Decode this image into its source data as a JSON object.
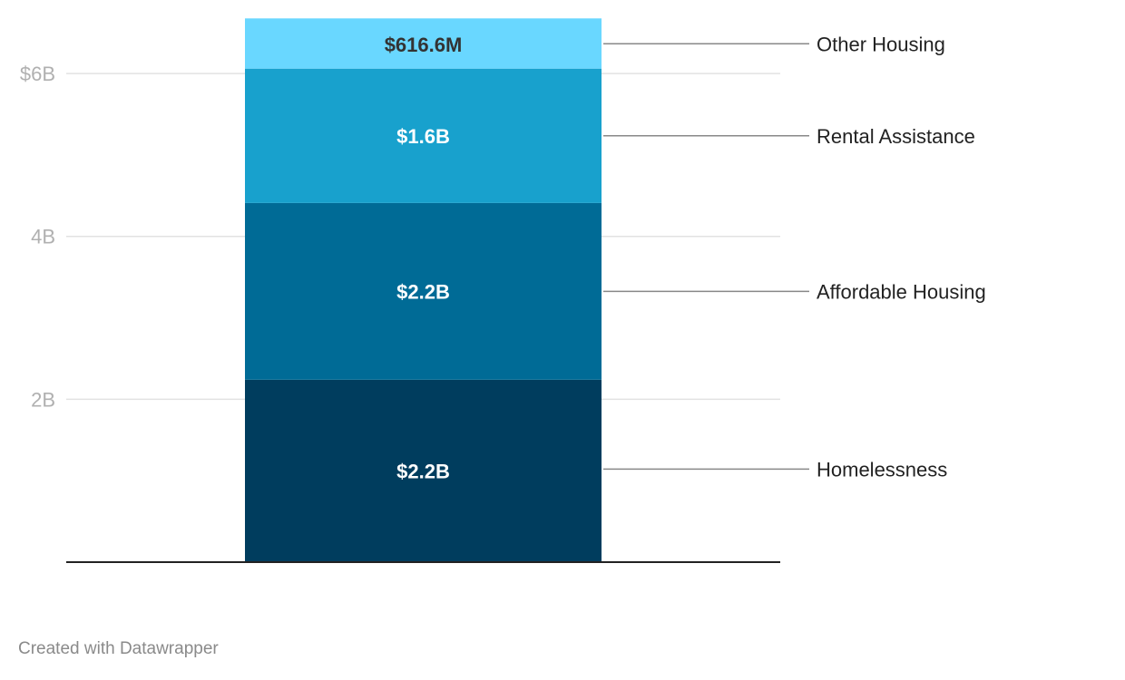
{
  "chart_data": {
    "type": "bar",
    "stacked": true,
    "categories": [
      ""
    ],
    "series": [
      {
        "name": "Homelessness",
        "values": [
          2.24
        ],
        "label": "$2.2B",
        "color": "#003d5e"
      },
      {
        "name": "Affordable Housing",
        "values": [
          2.17
        ],
        "label": "$2.2B",
        "color": "#006b96"
      },
      {
        "name": "Rental Assistance",
        "values": [
          1.65
        ],
        "label": "$1.6B",
        "color": "#18a1cd"
      },
      {
        "name": "Other Housing",
        "values": [
          0.6166
        ],
        "label": "$616.6M",
        "color": "#69d7ff"
      }
    ],
    "yticks": [
      {
        "value": 2,
        "label": "2B"
      },
      {
        "value": 4,
        "label": "4B"
      },
      {
        "value": 6,
        "label": "$6B"
      }
    ],
    "ylim": [
      0,
      6.68
    ],
    "grid": true,
    "title": "",
    "xlabel": "",
    "ylabel": ""
  },
  "footer": {
    "credit": "Created with Datawrapper"
  }
}
